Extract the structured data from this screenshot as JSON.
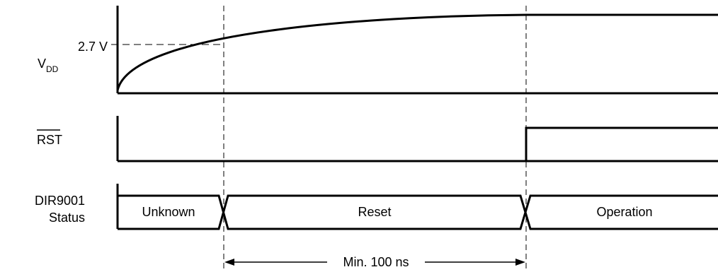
{
  "signals": {
    "vdd": {
      "label_main": "V",
      "label_sub": "DD",
      "level_label": "2.7 V"
    },
    "rst": {
      "label": "RST"
    },
    "status": {
      "label_line1": "DIR9001",
      "label_line2": "Status",
      "states": [
        "Unknown",
        "Reset",
        "Operation"
      ]
    }
  },
  "timing": {
    "interval_label": "Min. 100 ns"
  }
}
